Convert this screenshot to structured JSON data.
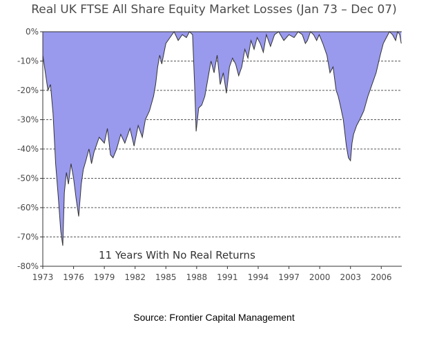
{
  "chart_data": {
    "type": "area",
    "title": "Real UK FTSE All Share Equity Market Losses (Jan 73 – Dec 07)",
    "ylabel": "",
    "xlabel": "",
    "ylim": [
      -80,
      0
    ],
    "xlim": [
      1973,
      2008
    ],
    "y_ticks": [
      "0%",
      "-10%",
      "-20%",
      "-30%",
      "-40%",
      "-50%",
      "-60%",
      "-70%",
      "-80%"
    ],
    "x_ticks": [
      "1973",
      "1976",
      "1979",
      "1982",
      "1985",
      "1988",
      "1991",
      "1994",
      "1997",
      "2000",
      "2003",
      "2006"
    ],
    "grid": "horizontal dashed",
    "fill_color": "#9999ee",
    "line_color": "#333333",
    "annotation": "11 Years With No Real Returns",
    "series": [
      {
        "x": [
          1973.0,
          1973.25,
          1973.5,
          1973.75,
          1974.0,
          1974.25,
          1974.5,
          1974.75,
          1974.95,
          1975.1,
          1975.3,
          1975.5,
          1975.75,
          1976.0,
          1976.25,
          1976.5,
          1976.75,
          1976.95,
          1977.2,
          1977.5,
          1977.75,
          1978.0,
          1978.5,
          1979.0,
          1979.3,
          1979.6,
          1979.85,
          1980.2,
          1980.6,
          1981.0,
          1981.5,
          1981.9,
          1982.3,
          1982.7,
          1983.0,
          1983.4,
          1983.8,
          1984.0,
          1984.2,
          1984.4,
          1984.6,
          1985.0,
          1985.4,
          1985.8,
          1986.2,
          1986.6,
          1987.0,
          1987.3,
          1987.6,
          1987.8,
          1987.95,
          1988.2,
          1988.5,
          1988.8,
          1989.1,
          1989.4,
          1989.7,
          1990.0,
          1990.3,
          1990.6,
          1990.9,
          1991.2,
          1991.5,
          1991.8,
          1992.1,
          1992.4,
          1992.7,
          1993.0,
          1993.3,
          1993.6,
          1993.9,
          1994.2,
          1994.5,
          1994.8,
          1995.2,
          1995.6,
          1996.0,
          1996.5,
          1997.0,
          1997.5,
          1997.9,
          1998.3,
          1998.6,
          1998.8,
          1999.1,
          1999.4,
          1999.7,
          1999.95,
          2000.3,
          2000.7,
          2001.0,
          2001.3,
          2001.6,
          2001.8,
          2002.0,
          2002.3,
          2002.6,
          2002.8,
          2003.0,
          2003.15,
          2003.3,
          2003.6,
          2003.9,
          2004.3,
          2004.7,
          2005.1,
          2005.5,
          2005.9,
          2006.2,
          2006.5,
          2006.8,
          2007.1,
          2007.4,
          2007.6,
          2007.8,
          2007.95
        ],
        "values": [
          -8,
          -14,
          -20,
          -18,
          -28,
          -45,
          -56,
          -68,
          -73,
          -55,
          -48,
          -52,
          -45,
          -50,
          -57,
          -63,
          -52,
          -47,
          -44,
          -40,
          -45,
          -41,
          -36,
          -38,
          -33,
          -42,
          -43,
          -40,
          -35,
          -38,
          -33,
          -39,
          -32,
          -36,
          -30,
          -27,
          -22,
          -18,
          -12,
          -8,
          -11,
          -4,
          -2,
          0,
          -3,
          -1,
          -2,
          0,
          -1,
          -18,
          -34,
          -26,
          -25,
          -22,
          -16,
          -10,
          -14,
          -8,
          -18,
          -14,
          -21,
          -12,
          -9,
          -11,
          -15,
          -12,
          -6,
          -9,
          -3,
          -6,
          -2,
          -4,
          -7,
          -1,
          -5,
          -1,
          0,
          -3,
          -1,
          -2,
          0,
          -1,
          -4,
          -3,
          0,
          -1,
          -3,
          -1,
          -4,
          -8,
          -14,
          -12,
          -20,
          -22,
          -25,
          -30,
          -39,
          -43,
          -44,
          -38,
          -35,
          -32,
          -30,
          -27,
          -22,
          -18,
          -14,
          -8,
          -4,
          -2,
          0,
          -1,
          -3,
          0,
          -1,
          -4
        ]
      }
    ]
  },
  "source_text": "Source: Frontier Capital Management"
}
